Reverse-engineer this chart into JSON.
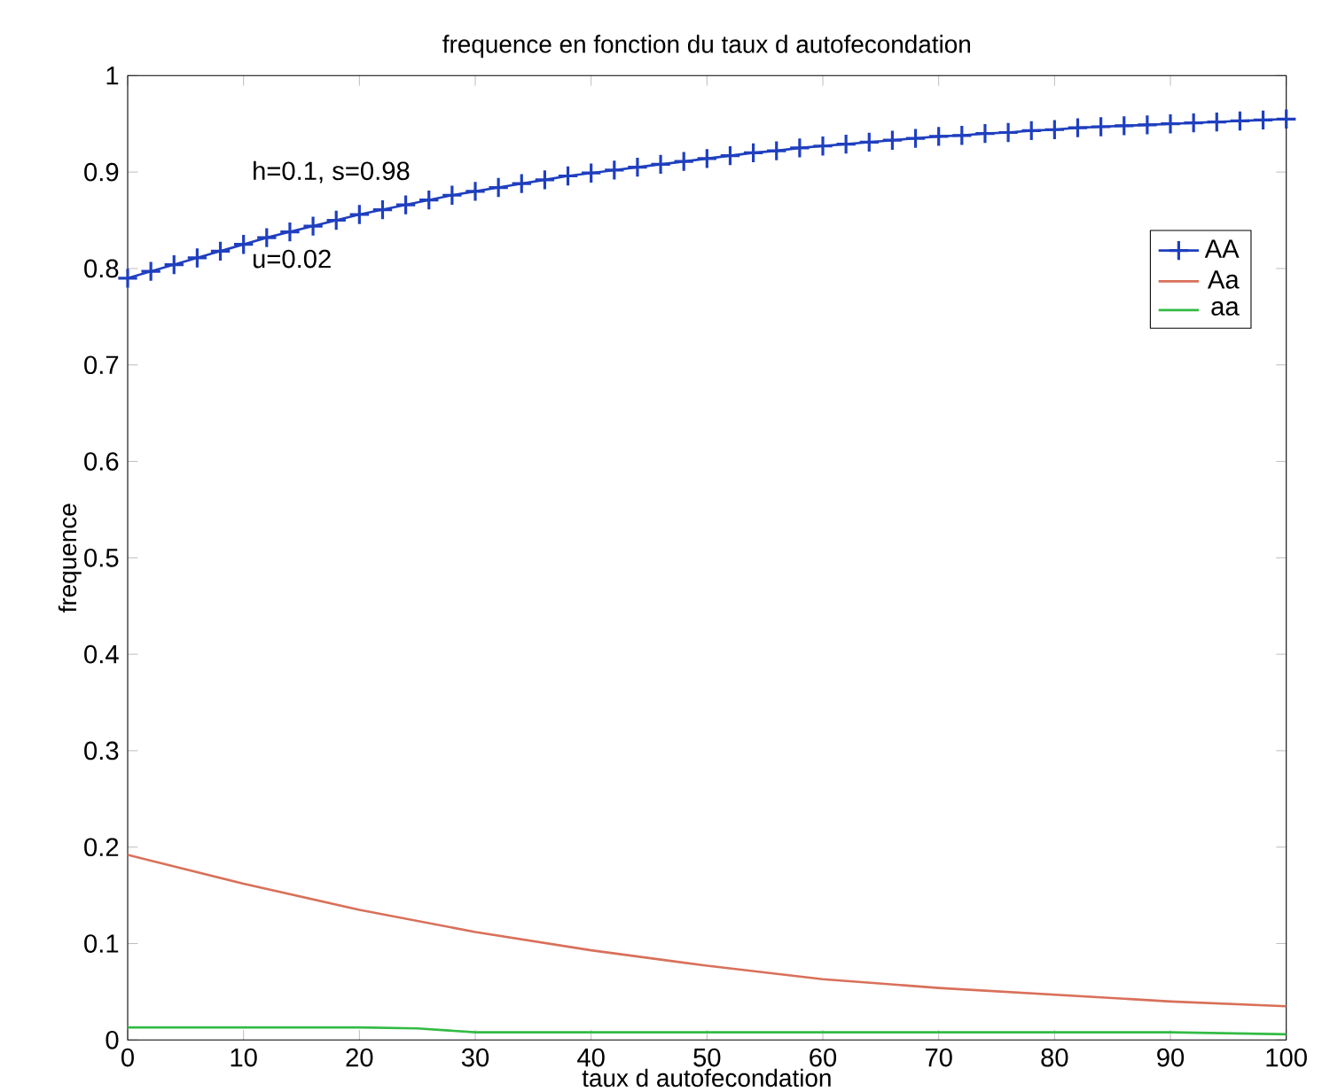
{
  "chart_data": {
    "type": "line",
    "title": "frequence en fonction du taux d autofecondation",
    "xlabel": "taux d autofecondation",
    "ylabel": "frequence",
    "annotations": [
      "h=0.1, s=0.98",
      "u=0.02"
    ],
    "xlim": [
      0,
      100
    ],
    "ylim": [
      0,
      1
    ],
    "xticks": [
      0,
      10,
      20,
      30,
      40,
      50,
      60,
      70,
      80,
      90,
      100
    ],
    "yticks": [
      0,
      0.1,
      0.2,
      0.3,
      0.4,
      0.5,
      0.6,
      0.7,
      0.8,
      0.9,
      1
    ],
    "legend": "top right",
    "line_style": "solid",
    "series": [
      {
        "name": "AA",
        "color": "#1f3fbf",
        "marker": "cross",
        "x": [
          0,
          2,
          4,
          6,
          8,
          10,
          12,
          14,
          16,
          18,
          20,
          22,
          24,
          26,
          28,
          30,
          32,
          34,
          36,
          38,
          40,
          42,
          44,
          46,
          48,
          50,
          52,
          54,
          56,
          58,
          60,
          62,
          64,
          66,
          68,
          70,
          72,
          74,
          76,
          78,
          80,
          82,
          84,
          86,
          88,
          90,
          92,
          94,
          96,
          98,
          100
        ],
        "values": [
          0.79,
          0.797,
          0.804,
          0.811,
          0.818,
          0.825,
          0.832,
          0.838,
          0.844,
          0.85,
          0.856,
          0.861,
          0.866,
          0.871,
          0.876,
          0.88,
          0.884,
          0.888,
          0.892,
          0.896,
          0.899,
          0.902,
          0.905,
          0.908,
          0.911,
          0.914,
          0.917,
          0.92,
          0.922,
          0.925,
          0.927,
          0.929,
          0.931,
          0.933,
          0.935,
          0.937,
          0.938,
          0.94,
          0.941,
          0.943,
          0.944,
          0.946,
          0.947,
          0.948,
          0.949,
          0.95,
          0.951,
          0.952,
          0.953,
          0.954,
          0.955
        ]
      },
      {
        "name": "Aa",
        "color": "#d9705a",
        "marker": "none",
        "x": [
          0,
          10,
          20,
          30,
          40,
          50,
          60,
          70,
          80,
          90,
          100
        ],
        "values": [
          0.192,
          0.162,
          0.135,
          0.112,
          0.093,
          0.077,
          0.063,
          0.054,
          0.047,
          0.04,
          0.035
        ]
      },
      {
        "name": "aa",
        "color": "#33bb44",
        "marker": "none",
        "x": [
          0,
          10,
          20,
          25,
          30,
          40,
          50,
          60,
          70,
          80,
          90,
          100
        ],
        "values": [
          0.013,
          0.013,
          0.013,
          0.012,
          0.008,
          0.008,
          0.008,
          0.008,
          0.008,
          0.008,
          0.008,
          0.006
        ]
      }
    ]
  }
}
